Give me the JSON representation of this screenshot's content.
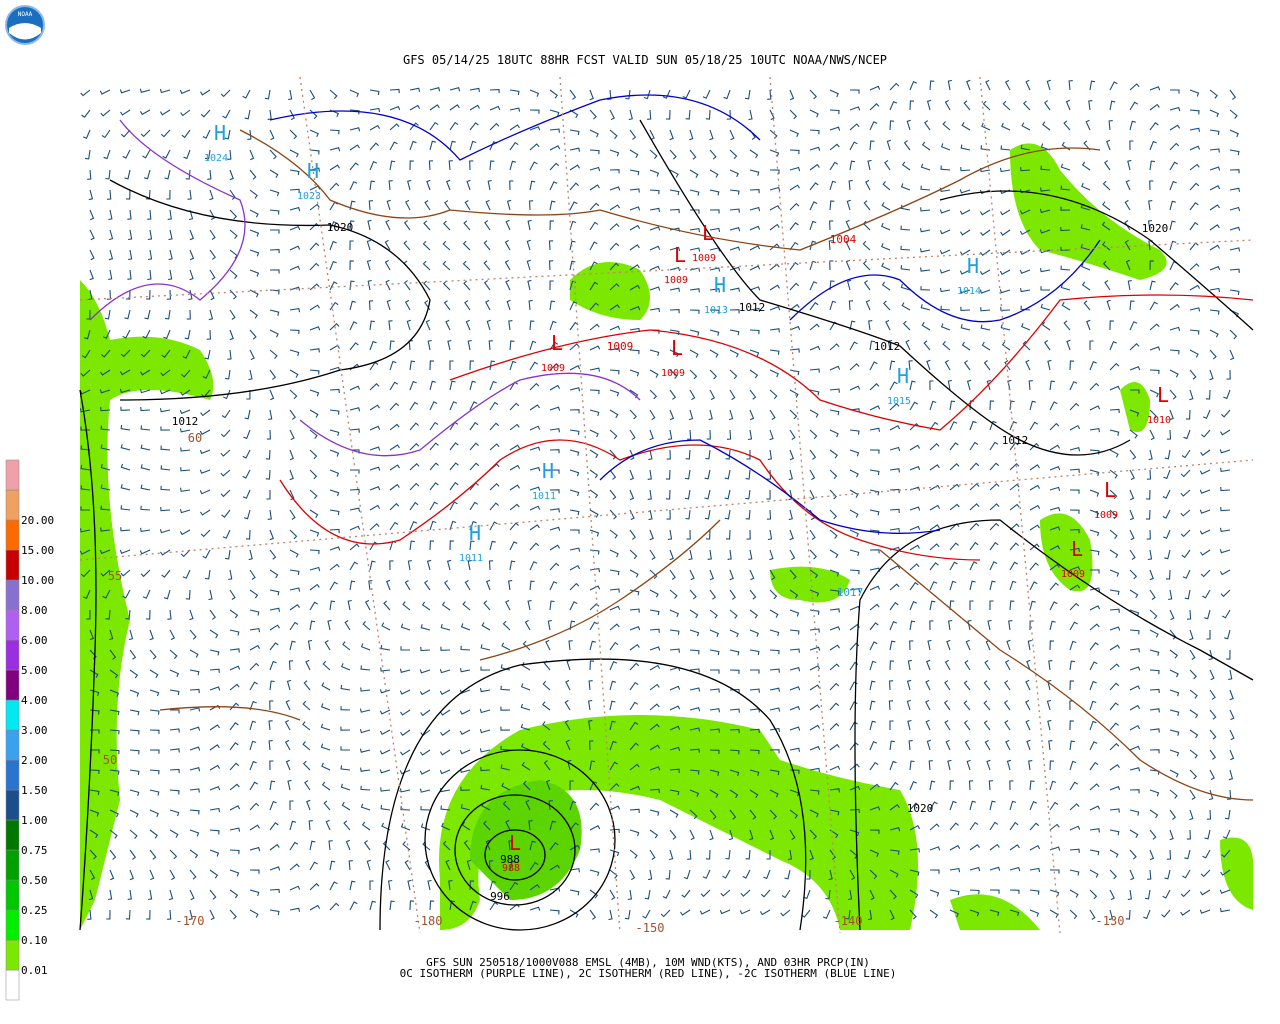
{
  "header": {
    "title": "GFS 05/14/25 18UTC 88HR FCST VALID SUN 05/18/25 10UTC NOAA/NWS/NCEP",
    "logo": "NOAA"
  },
  "footer": {
    "line1": "GFS SUN 250518/1000V088 EMSL (4MB), 10M WND(KTS), AND 03HR PRCP(IN)",
    "line2": "0C ISOTHERM (PURPLE LINE), 2C ISOTHERM (RED LINE), -2C ISOTHERM (BLUE LINE)"
  },
  "legend": {
    "labels": [
      "0.01",
      "0.10",
      "0.25",
      "0.50",
      "0.75",
      "1.00",
      "1.50",
      "2.00",
      "3.00",
      "4.00",
      "5.00",
      "6.00",
      "8.00",
      "10.00",
      "15.00",
      "20.00"
    ],
    "colors": [
      "#ffffff",
      "#7ce800",
      "#00f000",
      "#00c800",
      "#00a000",
      "#007800",
      "#1a4f8c",
      "#2a74d0",
      "#3aa0f0",
      "#00e8f0",
      "#800080",
      "#9a2ee0",
      "#b060f0",
      "#8870d0",
      "#c80000",
      "#ff6a00",
      "#f0a060",
      "#f0a0a8"
    ]
  },
  "pressure_centers": [
    {
      "symbol": "H",
      "value": 1024
    },
    {
      "symbol": "H",
      "value": 1023
    },
    {
      "symbol": "L",
      "value": 1009
    },
    {
      "symbol": "L",
      "value": 1009
    },
    {
      "symbol": "H",
      "value": 1013
    },
    {
      "symbol": "L",
      "value": 1009
    },
    {
      "symbol": "L",
      "value": 1009
    },
    {
      "symbol": "H",
      "value": 1014
    },
    {
      "symbol": "H",
      "value": 1015
    },
    {
      "symbol": "L",
      "value": 1010
    },
    {
      "symbol": "H",
      "value": 1011
    },
    {
      "symbol": "H",
      "value": 1011
    },
    {
      "symbol": "L",
      "value": 1009
    },
    {
      "symbol": "L",
      "value": 1009
    },
    {
      "symbol": "L",
      "value": 988
    }
  ],
  "isobar_labels": [
    1020,
    1012,
    1009,
    1004,
    1012,
    1012,
    1012,
    1020,
    1017,
    1020,
    988,
    996
  ],
  "graticule_labels": [
    60,
    55,
    50,
    -170,
    -180,
    -150,
    -140,
    -130
  ]
}
